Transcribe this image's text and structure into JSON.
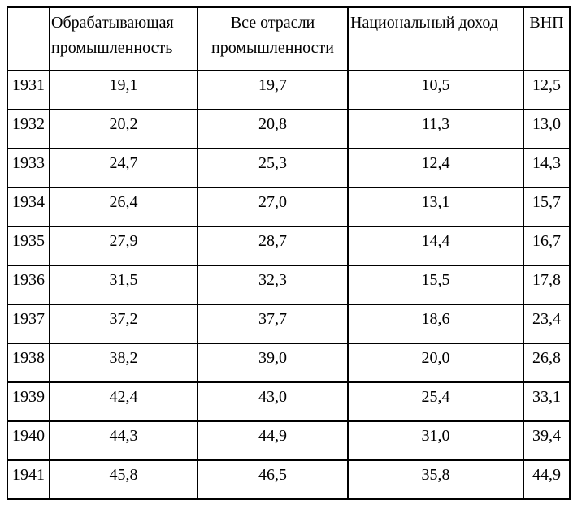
{
  "table": {
    "header": {
      "year": "",
      "manufacturing": "Обрабатывающая промышленность",
      "all_industries": "Все отрасли промышленности",
      "national_income": "Национальный доход",
      "gnp": "ВНП"
    },
    "rows": [
      {
        "year": "1931",
        "manufacturing": "19,1",
        "all_industries": "19,7",
        "national_income": "10,5",
        "gnp": "12,5"
      },
      {
        "year": "1932",
        "manufacturing": "20,2",
        "all_industries": "20,8",
        "national_income": "11,3",
        "gnp": "13,0"
      },
      {
        "year": "1933",
        "manufacturing": "24,7",
        "all_industries": "25,3",
        "national_income": "12,4",
        "gnp": "14,3"
      },
      {
        "year": "1934",
        "manufacturing": "26,4",
        "all_industries": "27,0",
        "national_income": "13,1",
        "gnp": "15,7"
      },
      {
        "year": "1935",
        "manufacturing": "27,9",
        "all_industries": "28,7",
        "national_income": "14,4",
        "gnp": "16,7"
      },
      {
        "year": "1936",
        "manufacturing": "31,5",
        "all_industries": "32,3",
        "national_income": "15,5",
        "gnp": "17,8"
      },
      {
        "year": "1937",
        "manufacturing": "37,2",
        "all_industries": "37,7",
        "national_income": "18,6",
        "gnp": "23,4"
      },
      {
        "year": "1938",
        "manufacturing": "38,2",
        "all_industries": "39,0",
        "national_income": "20,0",
        "gnp": "26,8"
      },
      {
        "year": "1939",
        "manufacturing": "42,4",
        "all_industries": "43,0",
        "national_income": "25,4",
        "gnp": "33,1"
      },
      {
        "year": "1940",
        "manufacturing": "44,3",
        "all_industries": "44,9",
        "national_income": "31,0",
        "gnp": "39,4"
      },
      {
        "year": "1941",
        "manufacturing": "45,8",
        "all_industries": "46,5",
        "national_income": "35,8",
        "gnp": "44,9"
      }
    ]
  }
}
